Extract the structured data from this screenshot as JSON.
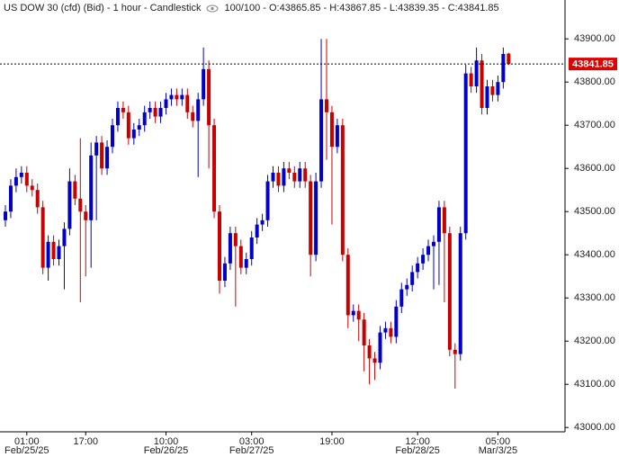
{
  "chart_data": {
    "type": "candlestick",
    "title": "US DOW 30 (cfd) (Bid) - 1 hour - Candlestick",
    "subtitle": "100/100 - O:43865.85 - H:43867.85 - L:43839.35 - C:43841.85",
    "up_color": "#0000c8",
    "down_color": "#c80000",
    "last_price": 43841.85,
    "last_price_color": "#e00000",
    "ylim": [
      42990,
      43990
    ],
    "yticks": [
      {
        "value": 43000,
        "label": "43000.00"
      },
      {
        "value": 43100,
        "label": "43100.00"
      },
      {
        "value": 43200,
        "label": "43200.00"
      },
      {
        "value": 43300,
        "label": "43300.00"
      },
      {
        "value": 43400,
        "label": "43400.00"
      },
      {
        "value": 43500,
        "label": "43500.00"
      },
      {
        "value": 43600,
        "label": "43600.00"
      },
      {
        "value": 43700,
        "label": "43700.00"
      },
      {
        "value": 43800,
        "label": "43800.00"
      },
      {
        "value": 43900,
        "label": "43900.00"
      }
    ],
    "categories": [
      null,
      null,
      null,
      null,
      "01:00",
      null,
      null,
      null,
      null,
      null,
      null,
      null,
      null,
      null,
      null,
      "17:00",
      null,
      null,
      null,
      null,
      null,
      null,
      null,
      null,
      null,
      null,
      null,
      null,
      null,
      null,
      "10:00",
      null,
      null,
      null,
      null,
      null,
      null,
      null,
      null,
      null,
      null,
      null,
      null,
      null,
      null,
      null,
      "03:00",
      null,
      null,
      null,
      null,
      null,
      null,
      null,
      null,
      null,
      null,
      null,
      null,
      null,
      null,
      "19:00",
      null,
      null,
      null,
      null,
      null,
      null,
      null,
      null,
      null,
      null,
      null,
      null,
      null,
      null,
      null,
      "12:00",
      null,
      null,
      null,
      null,
      null,
      null,
      null,
      null,
      null,
      null,
      null,
      null,
      null,
      null,
      "05:00",
      null,
      null
    ],
    "dates": [
      null,
      null,
      null,
      null,
      "Feb/25/25",
      null,
      null,
      null,
      null,
      null,
      null,
      null,
      null,
      null,
      null,
      null,
      null,
      null,
      null,
      null,
      null,
      null,
      null,
      null,
      null,
      null,
      null,
      null,
      null,
      null,
      "Feb/26/25",
      null,
      null,
      null,
      null,
      null,
      null,
      null,
      null,
      null,
      null,
      null,
      null,
      null,
      null,
      null,
      "Feb/27/25",
      null,
      null,
      null,
      null,
      null,
      null,
      null,
      null,
      null,
      null,
      null,
      null,
      null,
      null,
      null,
      null,
      null,
      null,
      null,
      null,
      null,
      null,
      null,
      null,
      null,
      null,
      null,
      null,
      null,
      null,
      "Feb/28/25",
      null,
      null,
      null,
      null,
      null,
      null,
      null,
      null,
      null,
      null,
      null,
      null,
      null,
      null,
      "Mar/3/25",
      null,
      null
    ],
    "open": [
      43480,
      43500,
      43560,
      43580,
      43590,
      43560,
      43550,
      43510,
      43370,
      43430,
      43390,
      43420,
      43460,
      43570,
      43530,
      43500,
      43480,
      43630,
      43660,
      43600,
      43650,
      43700,
      43740,
      43730,
      43670,
      43690,
      43700,
      43730,
      43740,
      43720,
      43740,
      43760,
      43770,
      43760,
      43770,
      43730,
      43710,
      43760,
      43830,
      43700,
      43500,
      43340,
      43380,
      43450,
      43420,
      43370,
      43390,
      43440,
      43470,
      43480,
      43570,
      43590,
      43560,
      43600,
      43590,
      43570,
      43600,
      43570,
      43400,
      43570,
      43760,
      43730,
      43650,
      43700,
      43400,
      43260,
      43270,
      43250,
      43190,
      43160,
      43150,
      43220,
      43230,
      43210,
      43280,
      43320,
      43330,
      43360,
      43380,
      43400,
      43420,
      43430,
      43510,
      43450,
      43180,
      43170,
      43450,
      43820,
      43790,
      43850,
      43740,
      43790,
      43770,
      43800,
      43865.85
    ],
    "high": [
      43515,
      43575,
      43600,
      43605,
      43605,
      43575,
      43565,
      43525,
      43445,
      43445,
      43435,
      43475,
      43600,
      43585,
      43670,
      43515,
      43660,
      43675,
      43675,
      43665,
      43715,
      43755,
      43755,
      43745,
      43705,
      43715,
      43745,
      43755,
      43755,
      43755,
      43775,
      43785,
      43785,
      43785,
      43785,
      43745,
      43775,
      43880,
      43850,
      43715,
      43515,
      43395,
      43465,
      43465,
      43435,
      43405,
      43455,
      43485,
      43495,
      43585,
      43605,
      43605,
      43615,
      43615,
      43605,
      43615,
      43615,
      43585,
      43590,
      43900,
      43900,
      43745,
      43715,
      43715,
      43415,
      43285,
      43285,
      43265,
      43205,
      43175,
      43235,
      43245,
      43245,
      43295,
      43335,
      43345,
      43375,
      43395,
      43415,
      43435,
      43445,
      43525,
      43525,
      43465,
      43195,
      43465,
      43840,
      43835,
      43880,
      43865,
      43805,
      43805,
      43815,
      43880,
      43867.85
    ],
    "low": [
      43465,
      43485,
      43545,
      43565,
      43545,
      43535,
      43495,
      43355,
      43340,
      43375,
      43375,
      43320,
      43445,
      43515,
      43290,
      43350,
      43370,
      43480,
      43585,
      43585,
      43635,
      43685,
      43715,
      43655,
      43655,
      43675,
      43685,
      43715,
      43705,
      43705,
      43725,
      43745,
      43745,
      43745,
      43715,
      43695,
      43580,
      43745,
      43600,
      43485,
      43310,
      43325,
      43365,
      43280,
      43355,
      43355,
      43375,
      43425,
      43455,
      43465,
      43555,
      43545,
      43545,
      43575,
      43555,
      43555,
      43555,
      43350,
      43385,
      43555,
      43620,
      43470,
      43635,
      43385,
      43230,
      43245,
      43200,
      43130,
      43100,
      43110,
      43135,
      43205,
      43195,
      43195,
      43265,
      43305,
      43315,
      43345,
      43365,
      43385,
      43320,
      43330,
      43290,
      43165,
      43090,
      43155,
      43435,
      43775,
      43775,
      43725,
      43725,
      43755,
      43755,
      43785,
      43839.35
    ],
    "close": [
      43500,
      43560,
      43580,
      43590,
      43560,
      43550,
      43510,
      43370,
      43430,
      43390,
      43420,
      43460,
      43570,
      43530,
      43500,
      43480,
      43630,
      43660,
      43600,
      43650,
      43700,
      43740,
      43730,
      43670,
      43690,
      43700,
      43730,
      43740,
      43720,
      43740,
      43760,
      43770,
      43760,
      43770,
      43730,
      43710,
      43760,
      43830,
      43700,
      43500,
      43340,
      43380,
      43450,
      43420,
      43370,
      43390,
      43440,
      43470,
      43480,
      43570,
      43590,
      43560,
      43600,
      43590,
      43570,
      43600,
      43570,
      43400,
      43570,
      43760,
      43730,
      43650,
      43700,
      43400,
      43260,
      43270,
      43250,
      43190,
      43160,
      43150,
      43220,
      43230,
      43210,
      43280,
      43320,
      43330,
      43360,
      43380,
      43400,
      43420,
      43430,
      43510,
      43450,
      43180,
      43170,
      43450,
      43820,
      43790,
      43850,
      43740,
      43790,
      43770,
      43800,
      43865,
      43841.85
    ]
  }
}
